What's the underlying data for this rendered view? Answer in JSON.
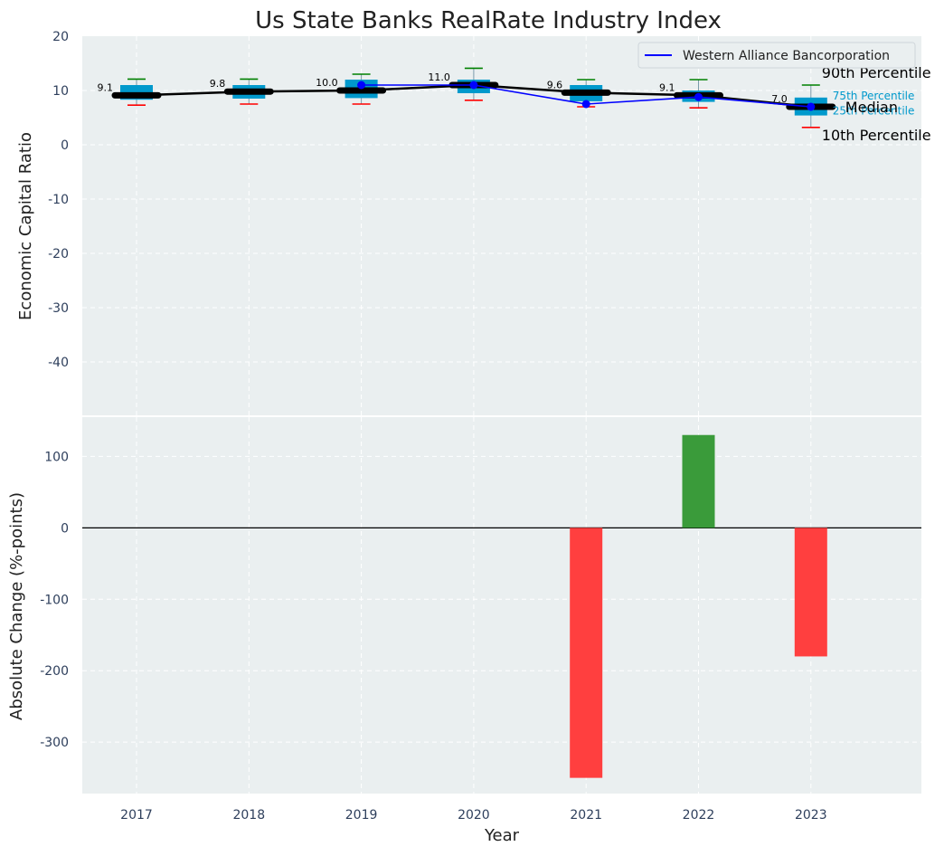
{
  "chart_data": [
    {
      "type": "box",
      "title": "Us State Banks RealRate Industry Index",
      "xlabel": "",
      "ylabel": "Economic Capital Ratio",
      "categories": [
        "2017",
        "2018",
        "2019",
        "2020",
        "2021",
        "2022",
        "2023"
      ],
      "ylim": [
        -50,
        20
      ],
      "yticks": [
        -40,
        -30,
        -20,
        -10,
        0,
        10,
        20
      ],
      "grid": true,
      "boxes": [
        {
          "year": "2017",
          "p10": 7.3,
          "p25": 8.3,
          "median": 9.1,
          "p75": 11.0,
          "p90": 12.1
        },
        {
          "year": "2018",
          "p10": 7.5,
          "p25": 8.5,
          "median": 9.8,
          "p75": 11.0,
          "p90": 12.1
        },
        {
          "year": "2019",
          "p10": 7.5,
          "p25": 8.6,
          "median": 10.0,
          "p75": 12.0,
          "p90": 13.0
        },
        {
          "year": "2020",
          "p10": 8.2,
          "p25": 9.5,
          "median": 11.0,
          "p75": 12.0,
          "p90": 14.1
        },
        {
          "year": "2021",
          "p10": 7.0,
          "p25": 8.0,
          "median": 9.6,
          "p75": 11.0,
          "p90": 12.0
        },
        {
          "year": "2022",
          "p10": 6.8,
          "p25": 7.9,
          "median": 9.1,
          "p75": 10.0,
          "p90": 12.0
        },
        {
          "year": "2023",
          "p10": 3.2,
          "p25": 5.4,
          "median": 7.0,
          "p75": 8.7,
          "p90": 11.0
        }
      ],
      "median_labels": [
        "9.1",
        "9.8",
        "10.0",
        "11.0",
        "9.6",
        "9.1",
        "7.0"
      ],
      "series": [
        {
          "name": "Western Alliance Bancorporation",
          "color": "#0000ff",
          "values": [
            null,
            null,
            11.0,
            11.0,
            7.5,
            8.8,
            7.0
          ]
        }
      ],
      "legend": "top-right",
      "annotations": {
        "p90": "90th Percentile",
        "p75": "75th Percentile",
        "median": "Median",
        "p25": "25th Percentile",
        "p10": "10th Percentile"
      },
      "colors": {
        "box": "#0099cc",
        "median_line": "#000000",
        "whisker_top": "#008000",
        "whisker_bottom": "#ff0000",
        "background": "#eaeff0"
      }
    },
    {
      "type": "bar",
      "title": "",
      "xlabel": "Year",
      "ylabel": "Absolute Change (%-points)",
      "categories": [
        "2017",
        "2018",
        "2019",
        "2020",
        "2021",
        "2022",
        "2023"
      ],
      "values": [
        0,
        0,
        0,
        0,
        -350,
        130,
        -180
      ],
      "ylim": [
        -372,
        155
      ],
      "yticks": [
        -300,
        -200,
        -100,
        0,
        100
      ],
      "grid": true,
      "colors": {
        "positive": "#3a9b3a",
        "negative": "#ff3f3f"
      }
    }
  ]
}
